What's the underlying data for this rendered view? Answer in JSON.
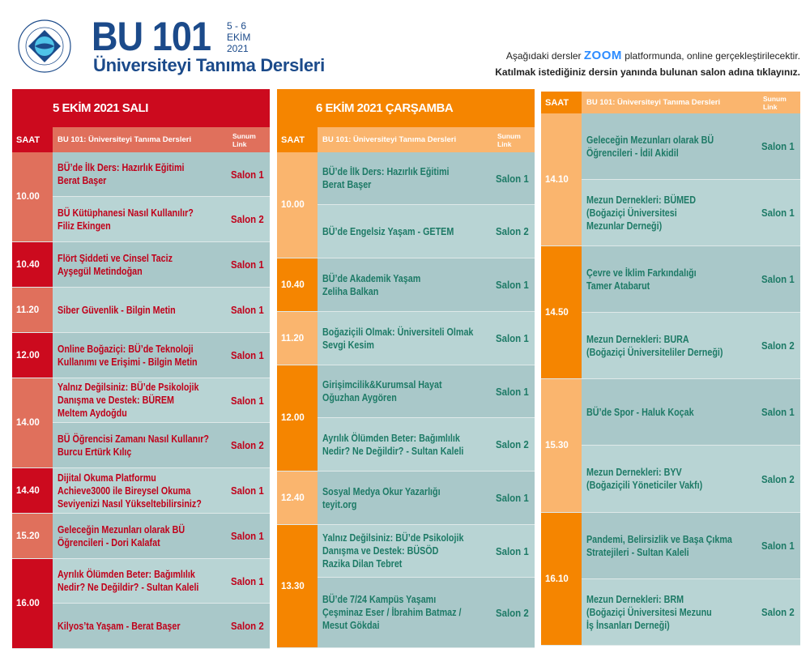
{
  "header": {
    "logo_text": "BOĞAZİÇİ ÜNİVERSİTESİ 1863",
    "title": "BU 101",
    "dates": [
      "5 - 6",
      "EKİM",
      "2021"
    ],
    "subtitle": "Üniversiteyi Tanıma Dersleri",
    "note_line1_before": "Aşağıdaki dersler",
    "note_zoom": "ZOOM",
    "note_line1_after": "platformunda, online gerçekleştirilecektir.",
    "note_line2": "Katılmak istediğiniz dersin yanında bulunan salon adına tıklayınız."
  },
  "colors": {
    "navy": "#1b4a8a",
    "red": "#cc0a1e",
    "salmon": "#e0705c",
    "orange": "#f58500",
    "light_orange": "#fab56e",
    "teal_text": "#1d7a66",
    "red_text": "#c0001a",
    "row_a": "#a9c8c9",
    "row_b": "#b8d4d4",
    "zoom_blue": "#2d8cff"
  },
  "days": [
    {
      "title": "5 EKİM 2021 SALI",
      "saat": "SAAT",
      "course": "BU 101: Üniversiteyi Tanıma Dersleri",
      "link": [
        "Sunum",
        "Link"
      ],
      "slots": [
        {
          "time": "10.00",
          "sessions": [
            {
              "lines": [
                "BÜ’de İlk Ders: Hazırlık Eğitimi",
                "Berat Başer"
              ],
              "salon": "Salon 1"
            },
            {
              "lines": [
                "BÜ Kütüphanesi Nasıl Kullanılır?",
                "Filiz Ekingen"
              ],
              "salon": "Salon 2"
            }
          ]
        },
        {
          "time": "10.40",
          "sessions": [
            {
              "lines": [
                "Flört Şiddeti ve Cinsel Taciz",
                "Ayşegül Metindoğan"
              ],
              "salon": "Salon 1"
            }
          ]
        },
        {
          "time": "11.20",
          "sessions": [
            {
              "lines": [
                "Siber Güvenlik - Bilgin Metin"
              ],
              "salon": "Salon 1"
            }
          ]
        },
        {
          "time": "12.00",
          "sessions": [
            {
              "lines": [
                "Online Boğaziçi: BÜ’de Teknoloji",
                "Kullanımı ve Erişimi - Bilgin Metin"
              ],
              "salon": "Salon 1"
            }
          ]
        },
        {
          "time": "14.00",
          "sessions": [
            {
              "lines": [
                "Yalnız Değilsiniz: BÜ’de Psikolojik",
                "Danışma ve Destek: BÜREM",
                "Meltem Aydoğdu"
              ],
              "salon": "Salon 1"
            },
            {
              "lines": [
                "BÜ Öğrencisi Zamanı Nasıl Kullanır?",
                "Burcu Ertürk Kılıç"
              ],
              "salon": "Salon 2"
            }
          ]
        },
        {
          "time": "14.40",
          "sessions": [
            {
              "lines": [
                "Dijital Okuma Platformu",
                "Achieve3000 ile Bireysel Okuma",
                "Seviyenizi Nasıl Yükseltebilirsiniz?"
              ],
              "salon": "Salon 1"
            }
          ]
        },
        {
          "time": "15.20",
          "sessions": [
            {
              "lines": [
                "Geleceğin Mezunları olarak BÜ",
                "Öğrencileri - Dori Kalafat"
              ],
              "salon": "Salon 1"
            }
          ]
        },
        {
          "time": "16.00",
          "sessions": [
            {
              "lines": [
                "Ayrılık Ölümden Beter: Bağımlılık",
                "Nedir? Ne Değildir? - Sultan Kaleli"
              ],
              "salon": "Salon 1"
            },
            {
              "lines": [
                "Kilyos’ta Yaşam - Berat Başer"
              ],
              "salon": "Salon 2"
            }
          ]
        }
      ]
    },
    {
      "title": "6 EKİM 2021 ÇARŞAMBA",
      "saat": "SAAT",
      "course": "BU 101: Üniversiteyi Tanıma Dersleri",
      "link": [
        "Sunum",
        "Link"
      ],
      "slots": [
        {
          "time": "10.00",
          "sessions": [
            {
              "lines": [
                "BÜ’de İlk Ders: Hazırlık Eğitimi",
                "Berat Başer"
              ],
              "salon": "Salon 1"
            },
            {
              "lines": [
                "BÜ’de Engelsiz Yaşam - GETEM"
              ],
              "salon": "Salon 2"
            }
          ]
        },
        {
          "time": "10.40",
          "sessions": [
            {
              "lines": [
                "BÜ’de Akademik Yaşam",
                "Zeliha Balkan"
              ],
              "salon": "Salon 1"
            }
          ]
        },
        {
          "time": "11.20",
          "sessions": [
            {
              "lines": [
                "Boğaziçili Olmak: Üniversiteli Olmak",
                "Sevgi Kesim"
              ],
              "salon": "Salon 1"
            }
          ]
        },
        {
          "time": "12.00",
          "sessions": [
            {
              "lines": [
                "Girişimcilik&Kurumsal Hayat",
                "Oğuzhan Aygören"
              ],
              "salon": "Salon 1"
            },
            {
              "lines": [
                "Ayrılık Ölümden Beter: Bağımlılık",
                "Nedir? Ne Değildir? - Sultan Kaleli"
              ],
              "salon": "Salon 2"
            }
          ]
        },
        {
          "time": "12.40",
          "sessions": [
            {
              "lines": [
                "Sosyal Medya Okur Yazarlığı",
                "teyit.org"
              ],
              "salon": "Salon 1"
            }
          ]
        },
        {
          "time": "13.30",
          "sessions": [
            {
              "lines": [
                "Yalnız Değilsiniz: BÜ’de Psikolojik",
                "Danışma ve Destek: BÜSÖD",
                "Razika Dilan Tebret"
              ],
              "salon": "Salon 1"
            },
            {
              "lines": [
                "BÜ’de 7/24 Kampüs Yaşamı",
                "Çeşminaz Eser / İbrahim Batmaz /",
                "Mesut Gökdai"
              ],
              "salon": "Salon 2"
            }
          ]
        }
      ]
    },
    {
      "title": "",
      "saat": "SAAT",
      "course": "BU 101: Üniversiteyi Tanıma Dersleri",
      "link": [
        "Sunum",
        "Link"
      ],
      "slots": [
        {
          "time": "14.10",
          "sessions": [
            {
              "lines": [
                "Geleceğin Mezunları olarak BÜ",
                "Öğrencileri - İdil Akidil"
              ],
              "salon": "Salon 1"
            },
            {
              "lines": [
                "Mezun Dernekleri: BÜMED",
                "(Boğaziçi Üniversitesi",
                "Mezunlar Derneği)"
              ],
              "salon": "Salon 1"
            }
          ]
        },
        {
          "time": "14.50",
          "sessions": [
            {
              "lines": [
                "Çevre ve İklim Farkındalığı",
                "Tamer Atabarut"
              ],
              "salon": "Salon 1"
            },
            {
              "lines": [
                "Mezun Dernekleri: BURA",
                "(Boğaziçi Üniversiteliler Derneği)"
              ],
              "salon": "Salon 2"
            }
          ]
        },
        {
          "time": "15.30",
          "sessions": [
            {
              "lines": [
                "BÜ’de Spor - Haluk Koçak"
              ],
              "salon": "Salon 1"
            },
            {
              "lines": [
                "Mezun Dernekleri: BYV",
                "(Boğaziçili Yöneticiler Vakfı)"
              ],
              "salon": "Salon 2"
            }
          ]
        },
        {
          "time": "16.10",
          "sessions": [
            {
              "lines": [
                "Pandemi, Belirsizlik ve Başa Çıkma",
                "Stratejileri - Sultan Kaleli"
              ],
              "salon": "Salon 1"
            },
            {
              "lines": [
                "Mezun Dernekleri: BRM",
                "(Boğaziçi Üniversitesi Mezunu",
                "İş İnsanları Derneği)"
              ],
              "salon": "Salon 2"
            }
          ]
        }
      ]
    }
  ]
}
